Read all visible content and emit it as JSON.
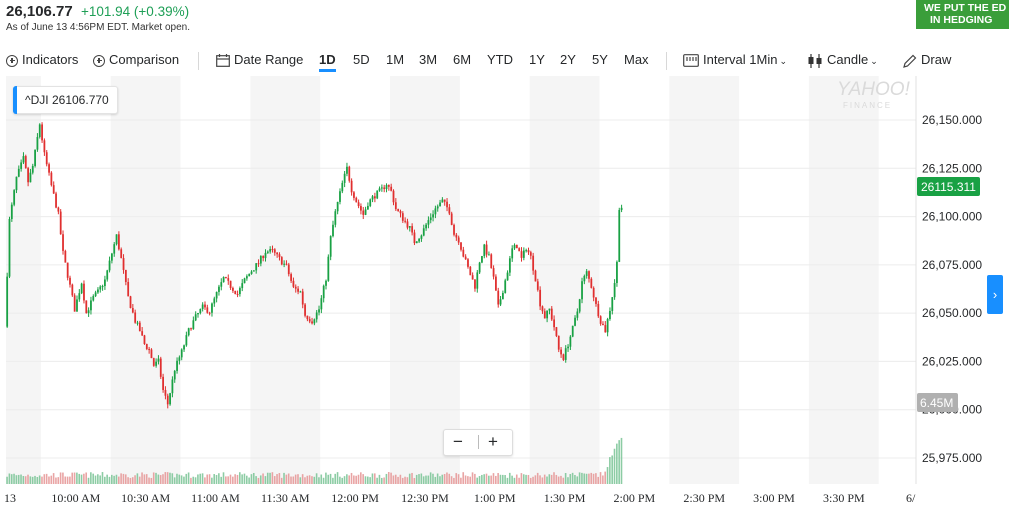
{
  "header": {
    "price": "26,106.77",
    "change": "+101.94 (+0.39%)",
    "asof": "As of June 13 4:56PM EDT. Market open."
  },
  "ad": {
    "line1": "WE PUT THE ED",
    "line2": "IN HEDGING"
  },
  "toolbar": {
    "indicators": "Indicators",
    "comparison": "Comparison",
    "date_range": "Date Range",
    "ranges": [
      "1D",
      "5D",
      "1M",
      "3M",
      "6M",
      "YTD",
      "1Y",
      "2Y",
      "5Y",
      "Max"
    ],
    "active_range": "1D",
    "interval_label": "Interval",
    "interval_value": "1Min",
    "chart_type": "Candle",
    "draw": "Draw"
  },
  "badge": {
    "symbol": "^DJI",
    "value": "26106.770"
  },
  "watermark": {
    "brand": "YAHOO!",
    "sub": "FINANCE"
  },
  "chart_data": {
    "type": "candlestick",
    "ylim": [
      25965,
      26170
    ],
    "yticks": [
      "26,150.000",
      "26,125.000",
      "26,100.000",
      "26,075.000",
      "26,050.000",
      "26,025.000",
      "26,000.000",
      "25,975.000"
    ],
    "ytick_values": [
      26150,
      26125,
      26100,
      26075,
      26050,
      26025,
      26000,
      25975
    ],
    "xtick_labels": [
      "13",
      "10:00 AM",
      "10:30 AM",
      "11:00 AM",
      "11:30 AM",
      "12:00 PM",
      "12:30 PM",
      "1:00 PM",
      "1:30 PM",
      "2:00 PM",
      "2:30 PM",
      "3:00 PM",
      "3:30 PM",
      "6/"
    ],
    "xtick_minutes": [
      0,
      30,
      60,
      90,
      120,
      150,
      180,
      210,
      240,
      270,
      300,
      330,
      360,
      390
    ],
    "price_path": [
      [
        0,
        26043
      ],
      [
        2,
        26098
      ],
      [
        5,
        26120
      ],
      [
        8,
        26130
      ],
      [
        10,
        26118
      ],
      [
        12,
        26126
      ],
      [
        15,
        26148
      ],
      [
        17,
        26132
      ],
      [
        20,
        26116
      ],
      [
        23,
        26101
      ],
      [
        25,
        26081
      ],
      [
        28,
        26064
      ],
      [
        30,
        26052
      ],
      [
        33,
        26066
      ],
      [
        35,
        26050
      ],
      [
        38,
        26058
      ],
      [
        40,
        26061
      ],
      [
        43,
        26067
      ],
      [
        46,
        26081
      ],
      [
        48,
        26090
      ],
      [
        50,
        26078
      ],
      [
        53,
        26058
      ],
      [
        56,
        26046
      ],
      [
        58,
        26041
      ],
      [
        60,
        26034
      ],
      [
        62,
        26031
      ],
      [
        64,
        26023
      ],
      [
        66,
        26025
      ],
      [
        68,
        26010
      ],
      [
        70,
        26003
      ],
      [
        73,
        26021
      ],
      [
        76,
        26030
      ],
      [
        79,
        26041
      ],
      [
        82,
        26048
      ],
      [
        85,
        26053
      ],
      [
        88,
        26051
      ],
      [
        91,
        26060
      ],
      [
        94,
        26068
      ],
      [
        97,
        26064
      ],
      [
        100,
        26060
      ],
      [
        103,
        26067
      ],
      [
        106,
        26072
      ],
      [
        109,
        26076
      ],
      [
        112,
        26082
      ],
      [
        115,
        26082
      ],
      [
        118,
        26078
      ],
      [
        121,
        26074
      ],
      [
        124,
        26063
      ],
      [
        127,
        26061
      ],
      [
        129,
        26049
      ],
      [
        132,
        26046
      ],
      [
        135,
        26052
      ],
      [
        138,
        26068
      ],
      [
        140,
        26089
      ],
      [
        142,
        26102
      ],
      [
        145,
        26117
      ],
      [
        147,
        26125
      ],
      [
        149,
        26114
      ],
      [
        151,
        26108
      ],
      [
        154,
        26101
      ],
      [
        156,
        26107
      ],
      [
        159,
        26111
      ],
      [
        162,
        26114
      ],
      [
        164,
        26117
      ],
      [
        166,
        26113
      ],
      [
        168,
        26104
      ],
      [
        171,
        26099
      ],
      [
        174,
        26094
      ],
      [
        176,
        26087
      ],
      [
        179,
        26091
      ],
      [
        182,
        26098
      ],
      [
        185,
        26104
      ],
      [
        188,
        26108
      ],
      [
        191,
        26103
      ],
      [
        193,
        26091
      ],
      [
        195,
        26088
      ],
      [
        197,
        26080
      ],
      [
        200,
        26070
      ],
      [
        202,
        26064
      ],
      [
        204,
        26077
      ],
      [
        206,
        26084
      ],
      [
        208,
        26079
      ],
      [
        210,
        26068
      ],
      [
        212,
        26053
      ],
      [
        214,
        26062
      ],
      [
        216,
        26072
      ],
      [
        218,
        26083
      ],
      [
        220,
        26085
      ],
      [
        222,
        26078
      ],
      [
        224,
        26084
      ],
      [
        226,
        26079
      ],
      [
        228,
        26068
      ],
      [
        230,
        26055
      ],
      [
        232,
        26048
      ],
      [
        234,
        26052
      ],
      [
        236,
        26043
      ],
      [
        238,
        26031
      ],
      [
        240,
        26027
      ],
      [
        242,
        26034
      ],
      [
        244,
        26042
      ],
      [
        246,
        26051
      ],
      [
        248,
        26066
      ],
      [
        250,
        26071
      ],
      [
        252,
        26064
      ],
      [
        254,
        26054
      ],
      [
        256,
        26046
      ],
      [
        258,
        26041
      ],
      [
        260,
        26052
      ],
      [
        262,
        26066
      ],
      [
        263,
        26076
      ],
      [
        264,
        26105
      ]
    ],
    "yaxis_current": "26115.311",
    "volume_label": "6.45M"
  }
}
